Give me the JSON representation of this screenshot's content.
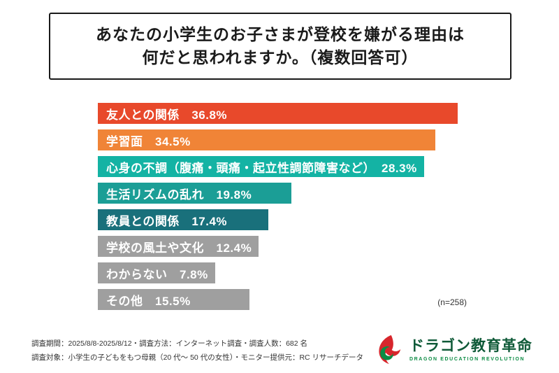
{
  "title": {
    "line1": "あなたの小学生のお子さまが登校を嫌がる理由は",
    "line2": "何だと思われますか。（複数回答可）"
  },
  "chart_data": {
    "type": "bar",
    "orientation": "horizontal",
    "title": "あなたの小学生のお子さまが登校を嫌がる理由は何だと思われますか。（複数回答可）",
    "categories": [
      "友人との関係",
      "学習面",
      "心身の不調（腹痛・頭痛・起立性調節障害など）",
      "生活リズムの乱れ",
      "教員との関係",
      "学校の風土や文化",
      "わからない",
      "その他"
    ],
    "values": [
      36.8,
      34.5,
      28.3,
      19.8,
      17.4,
      12.4,
      7.8,
      15.5
    ],
    "value_labels": [
      "36.8%",
      "34.5%",
      "28.3%",
      "19.8%",
      "17.4%",
      "12.4%",
      "7.8%",
      "15.5%"
    ],
    "colors": [
      "#e8492b",
      "#f08437",
      "#14b3a4",
      "#1b9e96",
      "#19707b",
      "#9f9f9f",
      "#9f9f9f",
      "#9f9f9f"
    ],
    "xlim": [
      0,
      40
    ],
    "grid": false,
    "legend": "none",
    "sample_label": "(n=258)"
  },
  "footer": {
    "line1": "調査期間：2025/8/8-2025/8/12・調査方法：インターネット調査・調査人数：682 名",
    "line2": "調査対象：小学生の子どもをもつ母親（20 代〜 50 代の女性）・モニター提供元：RC リサーチデータ"
  },
  "logo": {
    "name": "ドラゴン教育革命",
    "subtitle": "DRAGON EDUCATION REVOLUTION",
    "brand_red": "#d7262c",
    "brand_green": "#0c8c44"
  }
}
